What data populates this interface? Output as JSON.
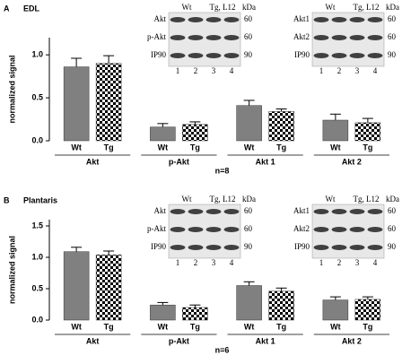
{
  "chart_data": [
    {
      "type": "bar",
      "panel": "A",
      "title": "EDL",
      "ylabel": "normalized signal",
      "note": "n=8",
      "categories": [
        "Akt",
        "p-Akt",
        "Akt 1",
        "Akt 2"
      ],
      "series": [
        {
          "name": "Wt",
          "color": "#808080",
          "values": [
            0.86,
            0.16,
            0.41,
            0.24
          ],
          "errors": [
            0.1,
            0.04,
            0.06,
            0.07
          ]
        },
        {
          "name": "Tg",
          "color": "checker",
          "values": [
            0.9,
            0.19,
            0.34,
            0.21
          ],
          "errors": [
            0.09,
            0.03,
            0.03,
            0.05
          ]
        }
      ],
      "ylim": [
        0,
        1.2
      ],
      "yticks": [
        {
          "value": 0,
          "label": "0.0"
        },
        0.5,
        {
          "value": 1,
          "label": "1.0"
        }
      ],
      "blots": [
        {
          "header": [
            "Wt",
            "Tg, L12"
          ],
          "unit": "kDa",
          "rows": [
            "Akt",
            "p-Akt",
            "IP90"
          ],
          "sizes": [
            60,
            60,
            90
          ],
          "lanes": [
            1,
            2,
            3,
            4
          ]
        },
        {
          "header": [
            "Wt",
            "Tg, L12"
          ],
          "unit": "kDa",
          "rows": [
            "Akt1",
            "Akt2",
            "IP90"
          ],
          "sizes": [
            60,
            60,
            90
          ],
          "lanes": [
            1,
            2,
            3,
            4
          ]
        }
      ]
    },
    {
      "type": "bar",
      "panel": "B",
      "title": "Plantaris",
      "ylabel": "normalized signal",
      "note": "n=6",
      "categories": [
        "Akt",
        "p-Akt",
        "Akt 1",
        "Akt 2"
      ],
      "series": [
        {
          "name": "Wt",
          "color": "#808080",
          "values": [
            1.09,
            0.24,
            0.55,
            0.32
          ],
          "errors": [
            0.07,
            0.04,
            0.06,
            0.05
          ]
        },
        {
          "name": "Tg",
          "color": "checker",
          "values": [
            1.04,
            0.2,
            0.46,
            0.33
          ],
          "errors": [
            0.06,
            0.04,
            0.05,
            0.04
          ]
        }
      ],
      "ylim": [
        0,
        1.6
      ],
      "yticks": [
        {
          "value": 0,
          "label": "0.0"
        },
        0.5,
        {
          "value": 1,
          "label": "1.0"
        },
        1.5
      ],
      "blots": [
        {
          "header": [
            "Wt",
            "Tg, L12"
          ],
          "unit": "kDa",
          "rows": [
            "Akt",
            "p-Akt",
            "IP90"
          ],
          "sizes": [
            60,
            60,
            90
          ],
          "lanes": [
            1,
            2,
            3,
            4
          ]
        },
        {
          "header": [
            "Wt",
            "Tg, L12"
          ],
          "unit": "kDa",
          "rows": [
            "Akt1",
            "Akt2",
            "IP90"
          ],
          "sizes": [
            60,
            60,
            90
          ],
          "lanes": [
            1,
            2,
            3,
            4
          ]
        }
      ]
    }
  ]
}
